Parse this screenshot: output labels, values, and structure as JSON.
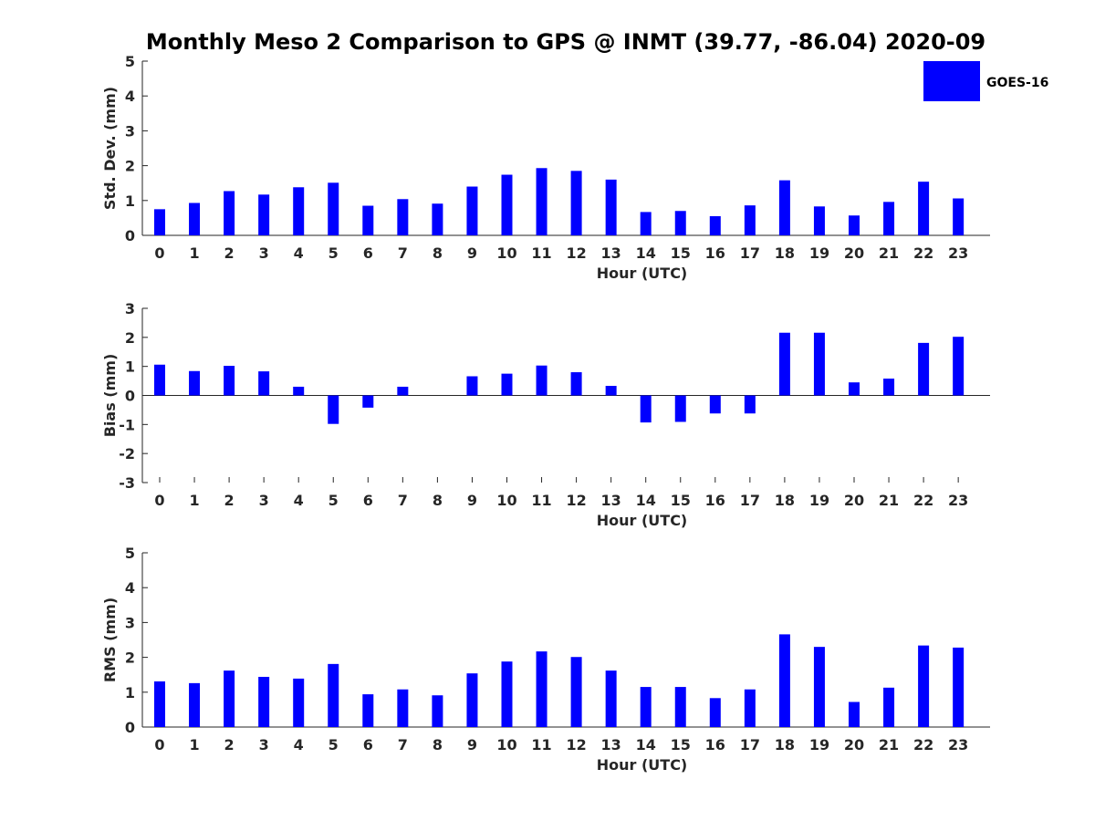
{
  "title": "Monthly Meso 2 Comparison to GPS @ INMT (39.77, -86.04) 2020-09",
  "legend": {
    "label": "GOES-16",
    "color": "#0000ff",
    "placement": "top-right"
  },
  "chart_data": [
    {
      "type": "bar",
      "categories": [
        "0",
        "1",
        "2",
        "3",
        "4",
        "5",
        "6",
        "7",
        "8",
        "9",
        "10",
        "11",
        "12",
        "13",
        "14",
        "15",
        "16",
        "17",
        "18",
        "19",
        "20",
        "21",
        "22",
        "23"
      ],
      "series": [
        {
          "name": "GOES-16",
          "values": [
            0.75,
            0.93,
            1.27,
            1.17,
            1.38,
            1.51,
            0.85,
            1.04,
            0.91,
            1.4,
            1.74,
            1.93,
            1.85,
            1.6,
            0.67,
            0.7,
            0.55,
            0.86,
            1.58,
            0.83,
            0.57,
            0.96,
            1.54,
            1.06
          ]
        }
      ],
      "xlabel": "Hour (UTC)",
      "ylabel": "Std. Dev. (mm)",
      "ylim": [
        0,
        5
      ],
      "yticks": [
        "0",
        "1",
        "2",
        "3",
        "4",
        "5"
      ],
      "grid": false
    },
    {
      "type": "bar",
      "categories": [
        "0",
        "1",
        "2",
        "3",
        "4",
        "5",
        "6",
        "7",
        "8",
        "9",
        "10",
        "11",
        "12",
        "13",
        "14",
        "15",
        "16",
        "17",
        "18",
        "19",
        "20",
        "21",
        "22",
        "23"
      ],
      "series": [
        {
          "name": "GOES-16",
          "values": [
            1.06,
            0.84,
            1.02,
            0.83,
            0.3,
            -0.98,
            -0.42,
            0.3,
            0,
            0.66,
            0.75,
            1.03,
            0.8,
            0.33,
            -0.93,
            -0.91,
            -0.62,
            -0.62,
            2.16,
            2.16,
            0.45,
            0.58,
            1.81,
            2.02
          ]
        }
      ],
      "xlabel": "Hour (UTC)",
      "ylabel": "Bias (mm)",
      "ylim": [
        -3,
        3
      ],
      "yticks": [
        "-3",
        "-2",
        "-1",
        "0",
        "1",
        "2",
        "3"
      ],
      "grid": false
    },
    {
      "type": "bar",
      "categories": [
        "0",
        "1",
        "2",
        "3",
        "4",
        "5",
        "6",
        "7",
        "8",
        "9",
        "10",
        "11",
        "12",
        "13",
        "14",
        "15",
        "16",
        "17",
        "18",
        "19",
        "20",
        "21",
        "22",
        "23"
      ],
      "series": [
        {
          "name": "GOES-16",
          "values": [
            1.31,
            1.26,
            1.62,
            1.44,
            1.39,
            1.81,
            0.94,
            1.08,
            0.91,
            1.54,
            1.88,
            2.17,
            2.01,
            1.62,
            1.15,
            1.15,
            0.83,
            1.08,
            2.66,
            2.3,
            0.72,
            1.13,
            2.34,
            2.28
          ]
        }
      ],
      "xlabel": "Hour (UTC)",
      "ylabel": "RMS (mm)",
      "ylim": [
        0,
        5
      ],
      "yticks": [
        "0",
        "1",
        "2",
        "3",
        "4",
        "5"
      ],
      "grid": false
    }
  ]
}
